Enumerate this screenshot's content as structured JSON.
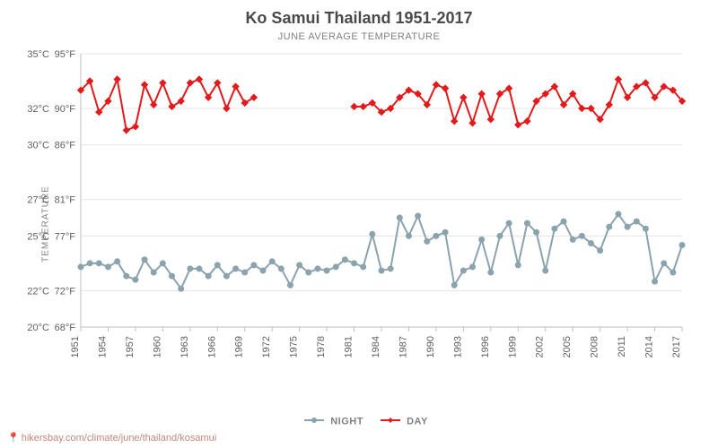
{
  "title": "Ko Samui Thailand 1951-2017",
  "subtitle": "JUNE AVERAGE TEMPERATURE",
  "ylabel": "TEMPERATURE",
  "credit": "hikersbay.com/climate/june/thailand/kosamui",
  "legend": {
    "night": "NIGHT",
    "day": "DAY"
  },
  "chart": {
    "type": "line",
    "background_color": "#ffffff",
    "grid_color": "#e6e6e6",
    "axis_color": "#bfbfbf",
    "title_fontsize": 18,
    "title_color": "#4a4a4a",
    "subtitle_fontsize": 11,
    "label_fontsize": 11,
    "text_color": "#606060",
    "line_width": 2,
    "marker_radius": 3,
    "day_marker": "diamond",
    "night_marker": "circle",
    "colors": {
      "day": "#e31a1c",
      "night": "#8aa3ad"
    },
    "xlim": [
      1951,
      2017
    ],
    "x_ticks": [
      1951,
      1954,
      1957,
      1960,
      1963,
      1966,
      1969,
      1972,
      1975,
      1978,
      1981,
      1984,
      1987,
      1990,
      1993,
      1996,
      1999,
      2002,
      2005,
      2008,
      2011,
      2014,
      2017
    ],
    "y_ticks_c": [
      20,
      22,
      25,
      27,
      30,
      32,
      35
    ],
    "y_ticks": [
      {
        "c": 20,
        "f": 68
      },
      {
        "c": 22,
        "f": 72
      },
      {
        "c": 25,
        "f": 77
      },
      {
        "c": 27,
        "f": 81
      },
      {
        "c": 30,
        "f": 86
      },
      {
        "c": 32,
        "f": 90
      },
      {
        "c": 35,
        "f": 95
      }
    ],
    "ylim": [
      20,
      35
    ],
    "series": {
      "day": [
        {
          "x": 1951,
          "y": 33.0
        },
        {
          "x": 1952,
          "y": 33.5
        },
        {
          "x": 1953,
          "y": 31.8
        },
        {
          "x": 1954,
          "y": 32.4
        },
        {
          "x": 1955,
          "y": 33.6
        },
        {
          "x": 1956,
          "y": 30.8
        },
        {
          "x": 1957,
          "y": 31.0
        },
        {
          "x": 1958,
          "y": 33.3
        },
        {
          "x": 1959,
          "y": 32.2
        },
        {
          "x": 1960,
          "y": 33.4
        },
        {
          "x": 1961,
          "y": 32.1
        },
        {
          "x": 1962,
          "y": 32.4
        },
        {
          "x": 1963,
          "y": 33.4
        },
        {
          "x": 1964,
          "y": 33.6
        },
        {
          "x": 1965,
          "y": 32.6
        },
        {
          "x": 1966,
          "y": 33.4
        },
        {
          "x": 1967,
          "y": 32.0
        },
        {
          "x": 1968,
          "y": 33.2
        },
        {
          "x": 1969,
          "y": 32.3
        },
        {
          "x": 1970,
          "y": 32.6
        },
        null,
        null,
        null,
        null,
        null,
        null,
        null,
        null,
        null,
        null,
        {
          "x": 1981,
          "y": 32.1
        },
        {
          "x": 1982,
          "y": 32.1
        },
        {
          "x": 1983,
          "y": 32.3
        },
        {
          "x": 1984,
          "y": 31.8
        },
        {
          "x": 1985,
          "y": 32.0
        },
        {
          "x": 1986,
          "y": 32.6
        },
        {
          "x": 1987,
          "y": 33.0
        },
        {
          "x": 1988,
          "y": 32.8
        },
        {
          "x": 1989,
          "y": 32.2
        },
        {
          "x": 1990,
          "y": 33.3
        },
        {
          "x": 1991,
          "y": 33.1
        },
        {
          "x": 1992,
          "y": 31.3
        },
        {
          "x": 1993,
          "y": 32.6
        },
        {
          "x": 1994,
          "y": 31.2
        },
        {
          "x": 1995,
          "y": 32.8
        },
        {
          "x": 1996,
          "y": 31.4
        },
        {
          "x": 1997,
          "y": 32.8
        },
        {
          "x": 1998,
          "y": 33.1
        },
        {
          "x": 1999,
          "y": 31.1
        },
        {
          "x": 2000,
          "y": 31.3
        },
        {
          "x": 2001,
          "y": 32.4
        },
        {
          "x": 2002,
          "y": 32.8
        },
        {
          "x": 2003,
          "y": 33.2
        },
        {
          "x": 2004,
          "y": 32.2
        },
        {
          "x": 2005,
          "y": 32.8
        },
        {
          "x": 2006,
          "y": 32.0
        },
        {
          "x": 2007,
          "y": 32.0
        },
        {
          "x": 2008,
          "y": 31.4
        },
        {
          "x": 2009,
          "y": 32.2
        },
        {
          "x": 2010,
          "y": 33.6
        },
        {
          "x": 2011,
          "y": 32.6
        },
        {
          "x": 2012,
          "y": 33.2
        },
        {
          "x": 2013,
          "y": 33.4
        },
        {
          "x": 2014,
          "y": 32.6
        },
        {
          "x": 2015,
          "y": 33.2
        },
        {
          "x": 2016,
          "y": 33.0
        },
        {
          "x": 2017,
          "y": 32.4
        }
      ],
      "night": [
        {
          "x": 1951,
          "y": 23.3
        },
        {
          "x": 1952,
          "y": 23.5
        },
        {
          "x": 1953,
          "y": 23.5
        },
        {
          "x": 1954,
          "y": 23.3
        },
        {
          "x": 1955,
          "y": 23.6
        },
        {
          "x": 1956,
          "y": 22.8
        },
        {
          "x": 1957,
          "y": 22.6
        },
        {
          "x": 1958,
          "y": 23.7
        },
        {
          "x": 1959,
          "y": 23.0
        },
        {
          "x": 1960,
          "y": 23.5
        },
        {
          "x": 1961,
          "y": 22.8
        },
        {
          "x": 1962,
          "y": 22.1
        },
        {
          "x": 1963,
          "y": 23.2
        },
        {
          "x": 1964,
          "y": 23.2
        },
        {
          "x": 1965,
          "y": 22.8
        },
        {
          "x": 1966,
          "y": 23.4
        },
        {
          "x": 1967,
          "y": 22.8
        },
        {
          "x": 1968,
          "y": 23.2
        },
        {
          "x": 1969,
          "y": 23.0
        },
        {
          "x": 1970,
          "y": 23.4
        },
        {
          "x": 1971,
          "y": 23.1
        },
        {
          "x": 1972,
          "y": 23.6
        },
        {
          "x": 1973,
          "y": 23.2
        },
        {
          "x": 1974,
          "y": 22.3
        },
        {
          "x": 1975,
          "y": 23.4
        },
        {
          "x": 1976,
          "y": 23.0
        },
        {
          "x": 1977,
          "y": 23.2
        },
        {
          "x": 1978,
          "y": 23.1
        },
        {
          "x": 1979,
          "y": 23.3
        },
        {
          "x": 1980,
          "y": 23.7
        },
        {
          "x": 1981,
          "y": 23.5
        },
        {
          "x": 1982,
          "y": 23.3
        },
        {
          "x": 1983,
          "y": 25.1
        },
        {
          "x": 1984,
          "y": 23.1
        },
        {
          "x": 1985,
          "y": 23.2
        },
        {
          "x": 1986,
          "y": 26.0
        },
        {
          "x": 1987,
          "y": 25.0
        },
        {
          "x": 1988,
          "y": 26.1
        },
        {
          "x": 1989,
          "y": 24.7
        },
        {
          "x": 1990,
          "y": 25.0
        },
        {
          "x": 1991,
          "y": 25.2
        },
        {
          "x": 1992,
          "y": 22.3
        },
        {
          "x": 1993,
          "y": 23.1
        },
        {
          "x": 1994,
          "y": 23.3
        },
        {
          "x": 1995,
          "y": 24.8
        },
        {
          "x": 1996,
          "y": 23.0
        },
        {
          "x": 1997,
          "y": 25.0
        },
        {
          "x": 1998,
          "y": 25.7
        },
        {
          "x": 1999,
          "y": 23.4
        },
        {
          "x": 2000,
          "y": 25.7
        },
        {
          "x": 2001,
          "y": 25.2
        },
        {
          "x": 2002,
          "y": 23.1
        },
        {
          "x": 2003,
          "y": 25.4
        },
        {
          "x": 2004,
          "y": 25.8
        },
        {
          "x": 2005,
          "y": 24.8
        },
        {
          "x": 2006,
          "y": 25.0
        },
        {
          "x": 2007,
          "y": 24.6
        },
        {
          "x": 2008,
          "y": 24.2
        },
        {
          "x": 2009,
          "y": 25.5
        },
        {
          "x": 2010,
          "y": 26.2
        },
        {
          "x": 2011,
          "y": 25.5
        },
        {
          "x": 2012,
          "y": 25.8
        },
        {
          "x": 2013,
          "y": 25.4
        },
        {
          "x": 2014,
          "y": 22.5
        },
        {
          "x": 2015,
          "y": 23.5
        },
        {
          "x": 2016,
          "y": 23.0
        },
        {
          "x": 2017,
          "y": 24.5
        }
      ]
    }
  }
}
